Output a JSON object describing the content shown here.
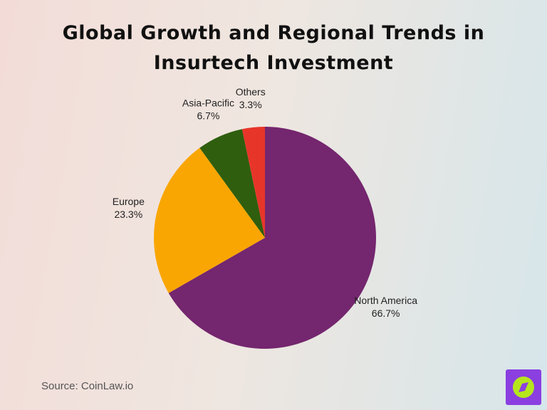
{
  "chart_data": {
    "type": "pie",
    "title": "Global Growth and Regional Trends in Insurtech Investment",
    "categories": [
      "North America",
      "Europe",
      "Asia-Pacific",
      "Others"
    ],
    "values": [
      66.7,
      23.3,
      6.7,
      3.3
    ],
    "value_labels": [
      "66.7%",
      "23.3%",
      "6.7%",
      "3.3%"
    ],
    "colors": [
      "#74266e",
      "#f9a602",
      "#2f5e0e",
      "#e8352a"
    ],
    "source": "Source: CoinLaw.io"
  }
}
